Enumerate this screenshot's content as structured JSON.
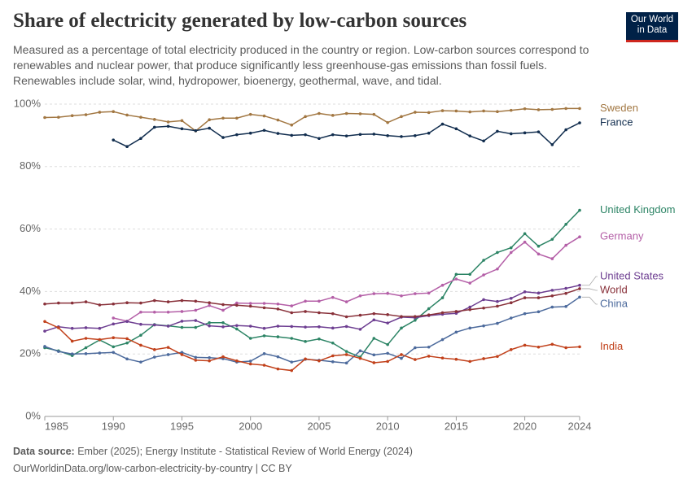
{
  "logo": [
    "Our World",
    "in Data"
  ],
  "chart_data": {
    "type": "line",
    "title": "Share of electricity generated by low-carbon sources",
    "subtitle": "Measured as a percentage of total electricity produced in the country or region. Low-carbon sources correspond to renewables and nuclear power, that produce significantly less greenhouse-gas emissions than fossil fuels. Renewables include solar, wind, hydropower, bioenergy, geothermal, wave, and tidal.",
    "source_label": "Data source:",
    "source": "Ember (2025); Energy Institute - Statistical Review of World Energy (2024)",
    "url": "OurWorldinData.org/low-carbon-electricity-by-country | CC BY",
    "x": [
      1985,
      1986,
      1987,
      1988,
      1989,
      1990,
      1991,
      1992,
      1993,
      1994,
      1995,
      1996,
      1997,
      1998,
      1999,
      2000,
      2001,
      2002,
      2003,
      2004,
      2005,
      2006,
      2007,
      2008,
      2009,
      2010,
      2011,
      2012,
      2013,
      2014,
      2015,
      2016,
      2017,
      2018,
      2019,
      2020,
      2021,
      2022,
      2023,
      2024
    ],
    "xlim": [
      1985,
      2024
    ],
    "xticks": [
      1985,
      1990,
      1995,
      2000,
      2005,
      2010,
      2015,
      2020,
      2024
    ],
    "ylim": [
      0,
      100
    ],
    "yticks": [
      {
        "value": 0,
        "label": "0%"
      },
      {
        "value": 20,
        "label": "20%"
      },
      {
        "value": 40,
        "label": "40%"
      },
      {
        "value": 60,
        "label": "60%"
      },
      {
        "value": 80,
        "label": "80%"
      },
      {
        "value": 100,
        "label": "100%"
      }
    ],
    "grid": true,
    "series": [
      {
        "name": "Sweden",
        "color": "#a27742",
        "values": [
          95.7,
          95.8,
          96.3,
          96.6,
          97.4,
          97.6,
          96.5,
          95.8,
          95.1,
          94.3,
          94.7,
          91.4,
          95.0,
          95.5,
          95.5,
          96.7,
          96.2,
          94.9,
          93.3,
          96.0,
          97.0,
          96.4,
          97.0,
          96.9,
          96.7,
          94.1,
          96.0,
          97.4,
          97.3,
          97.9,
          97.8,
          97.5,
          97.8,
          97.6,
          98.0,
          98.5,
          98.2,
          98.3,
          98.6,
          98.6
        ]
      },
      {
        "name": "France",
        "color": "#112d4e",
        "values": [
          null,
          null,
          null,
          null,
          null,
          88.5,
          86.4,
          89.0,
          92.6,
          92.9,
          92.1,
          91.5,
          92.3,
          89.3,
          90.2,
          90.7,
          91.6,
          90.6,
          90.0,
          90.2,
          89.0,
          90.2,
          89.8,
          90.3,
          90.4,
          89.9,
          89.6,
          89.9,
          90.7,
          93.6,
          92.1,
          89.8,
          88.2,
          91.3,
          90.5,
          90.8,
          91.1,
          87.0,
          91.8,
          94.0
        ]
      },
      {
        "name": "United Kingdom",
        "color": "#2c8465",
        "values": [
          22,
          21,
          19.5,
          22,
          24.5,
          22.3,
          23.5,
          26,
          29.4,
          29,
          28.5,
          28.5,
          30,
          30,
          28,
          25,
          25.8,
          25.5,
          25,
          24,
          24.8,
          23.5,
          20.8,
          19,
          25,
          23,
          28.3,
          30.8,
          34.5,
          38,
          45.5,
          45.5,
          50,
          52.5,
          54,
          58.5,
          54.5,
          56.7,
          61.5,
          66
        ]
      },
      {
        "name": "Germany",
        "color": "#b45fa7",
        "values": [
          null,
          null,
          null,
          null,
          null,
          31.5,
          30.5,
          33.4,
          33.4,
          33.4,
          33.6,
          34,
          35.5,
          34,
          36.3,
          36.2,
          36.2,
          36,
          35.4,
          36.9,
          36.9,
          38.1,
          36.7,
          38.6,
          39.3,
          39.4,
          38.6,
          39.3,
          39.5,
          42,
          44,
          42.7,
          45.3,
          47.2,
          52.5,
          55.8,
          52,
          50.5,
          54.8,
          57.5
        ]
      },
      {
        "name": "United States",
        "color": "#6d3e91",
        "values": [
          27.3,
          28.7,
          28.2,
          28.4,
          28.2,
          29.6,
          30.4,
          29.5,
          29.3,
          28.9,
          30.5,
          30.7,
          29.0,
          28.7,
          29.1,
          28.9,
          28.2,
          28.9,
          28.8,
          28.6,
          28.7,
          28.3,
          28.8,
          27.9,
          30.9,
          29.9,
          31.8,
          31.6,
          32.3,
          32.7,
          33.0,
          35.0,
          37.4,
          36.8,
          37.8,
          39.9,
          39.5,
          40.4,
          41.0,
          42.0
        ]
      },
      {
        "name": "World",
        "color": "#883039",
        "values": [
          36,
          36.3,
          36.3,
          36.7,
          35.7,
          36,
          36.4,
          36.3,
          37.1,
          36.7,
          37.1,
          36.9,
          36.4,
          35.8,
          35.6,
          35.3,
          34.8,
          34.4,
          33.2,
          33.6,
          33.2,
          32.9,
          31.9,
          32.4,
          32.9,
          32.6,
          32.0,
          32.0,
          32.5,
          33.2,
          33.6,
          34.2,
          34.7,
          35.3,
          36.4,
          38.0,
          38.0,
          38.6,
          39.4,
          40.9
        ]
      },
      {
        "name": "China",
        "color": "#4c6a9c",
        "values": [
          22.4,
          20.8,
          20.0,
          20.1,
          20.3,
          20.5,
          18.4,
          17.4,
          19.0,
          19.8,
          20.5,
          18.9,
          18.8,
          18.5,
          17.4,
          17.7,
          20.1,
          19.1,
          17.4,
          18.3,
          18.0,
          17.5,
          17.1,
          21.0,
          19.7,
          20.2,
          18.6,
          22.0,
          22.2,
          24.6,
          27.0,
          28.3,
          29.0,
          29.8,
          31.5,
          32.9,
          33.5,
          35.0,
          35.2,
          38.2
        ]
      },
      {
        "name": "India",
        "color": "#c1401a",
        "values": [
          30.4,
          28.4,
          24.1,
          25.0,
          24.6,
          25.2,
          24.9,
          22.8,
          21.4,
          22.1,
          19.8,
          18.0,
          17.8,
          19.1,
          17.8,
          16.8,
          16.4,
          15.2,
          14.7,
          18.4,
          17.8,
          19.4,
          19.8,
          18.6,
          17.2,
          17.6,
          19.8,
          18.2,
          19.3,
          18.7,
          18.3,
          17.6,
          18.5,
          19.2,
          21.4,
          22.8,
          22.2,
          23.1,
          22.0,
          22.3
        ]
      }
    ]
  }
}
